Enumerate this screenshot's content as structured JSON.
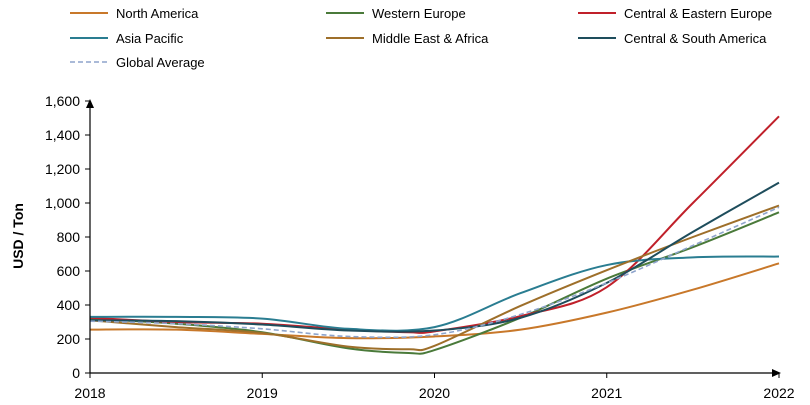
{
  "chart_data": {
    "type": "line",
    "ylabel": "USD / Ton",
    "xlabel": "",
    "x": [
      2018,
      2019,
      2020,
      2021,
      2022
    ],
    "x_ticks": [
      "2018",
      "2019",
      "2020",
      "2021",
      "2022"
    ],
    "ylim": [
      0,
      1600
    ],
    "y_ticks": [
      0,
      200,
      400,
      600,
      800,
      1000,
      1200,
      1400,
      1600
    ],
    "y_tick_labels": [
      "0",
      "200",
      "400",
      "600",
      "800",
      "1,000",
      "1,200",
      "1,400",
      "1,600"
    ],
    "grid": false,
    "legend_position": "top",
    "series": [
      {
        "name": "North America",
        "color": "#C8782A",
        "dashed": false,
        "points": [
          [
            2018,
            255
          ],
          [
            2018.5,
            255
          ],
          [
            2019,
            230
          ],
          [
            2019.5,
            205
          ],
          [
            2020,
            215
          ],
          [
            2020.5,
            255
          ],
          [
            2021,
            355
          ],
          [
            2021.5,
            490
          ],
          [
            2022,
            645
          ]
        ]
      },
      {
        "name": "Western Europe",
        "color": "#4A7A3A",
        "dashed": false,
        "points": [
          [
            2018,
            320
          ],
          [
            2018.5,
            290
          ],
          [
            2019,
            240
          ],
          [
            2019.5,
            145
          ],
          [
            2019.85,
            118
          ],
          [
            2020,
            135
          ],
          [
            2020.5,
            325
          ],
          [
            2021,
            555
          ],
          [
            2021.5,
            740
          ],
          [
            2022,
            945
          ]
        ]
      },
      {
        "name": "Central & Eastern Europe",
        "color": "#C0202A",
        "dashed": false,
        "points": [
          [
            2018,
            325
          ],
          [
            2018.5,
            300
          ],
          [
            2019,
            290
          ],
          [
            2019.5,
            255
          ],
          [
            2019.85,
            240
          ],
          [
            2020,
            245
          ],
          [
            2020.5,
            335
          ],
          [
            2021,
            505
          ],
          [
            2021.5,
            1000
          ],
          [
            2022,
            1510
          ]
        ]
      },
      {
        "name": "Asia Pacific",
        "color": "#2A7D91",
        "dashed": false,
        "points": [
          [
            2018,
            330
          ],
          [
            2018.5,
            330
          ],
          [
            2019,
            320
          ],
          [
            2019.5,
            260
          ],
          [
            2020,
            270
          ],
          [
            2020.5,
            470
          ],
          [
            2021,
            635
          ],
          [
            2021.5,
            680
          ],
          [
            2022,
            685
          ]
        ]
      },
      {
        "name": "Middle East & Africa",
        "color": "#9E6F2A",
        "dashed": false,
        "points": [
          [
            2018,
            310
          ],
          [
            2018.5,
            270
          ],
          [
            2019,
            235
          ],
          [
            2019.5,
            155
          ],
          [
            2019.85,
            140
          ],
          [
            2020,
            160
          ],
          [
            2020.5,
            395
          ],
          [
            2021,
            605
          ],
          [
            2021.5,
            800
          ],
          [
            2022,
            985
          ]
        ]
      },
      {
        "name": "Central & South America",
        "color": "#1E4D5C",
        "dashed": false,
        "points": [
          [
            2018,
            310
          ],
          [
            2018.5,
            305
          ],
          [
            2019,
            285
          ],
          [
            2019.5,
            250
          ],
          [
            2020,
            250
          ],
          [
            2020.5,
            325
          ],
          [
            2021,
            530
          ],
          [
            2021.5,
            830
          ],
          [
            2022,
            1120
          ]
        ]
      },
      {
        "name": "Global Average",
        "color": "#8EA4CC",
        "dashed": true,
        "points": [
          [
            2018,
            305
          ],
          [
            2018.5,
            290
          ],
          [
            2019,
            260
          ],
          [
            2019.5,
            215
          ],
          [
            2020,
            225
          ],
          [
            2020.5,
            345
          ],
          [
            2021,
            530
          ],
          [
            2021.5,
            750
          ],
          [
            2022,
            975
          ]
        ]
      }
    ]
  }
}
